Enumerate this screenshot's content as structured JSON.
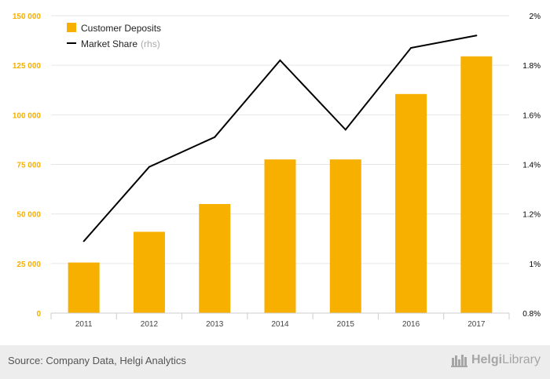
{
  "chart_data": {
    "type": "bar",
    "categories": [
      "2011",
      "2012",
      "2013",
      "2014",
      "2015",
      "2016",
      "2017"
    ],
    "series": [
      {
        "name": "Customer Deposits",
        "type": "bar",
        "axis": "left",
        "color": "#f7b000",
        "values": [
          25500,
          41000,
          55000,
          77500,
          77500,
          110500,
          129500
        ]
      },
      {
        "name": "Market Share",
        "name_suffix": "(rhs)",
        "type": "line",
        "axis": "right",
        "color": "#000000",
        "values": [
          1.09,
          1.39,
          1.51,
          1.82,
          1.54,
          1.87,
          1.92
        ]
      }
    ],
    "y_left": {
      "ylim": [
        0,
        150000
      ],
      "ticks": [
        0,
        25000,
        50000,
        75000,
        100000,
        125000,
        150000
      ],
      "tick_labels": [
        "0",
        "25 000",
        "50 000",
        "75 000",
        "100 000",
        "125 000",
        "150 000"
      ],
      "color": "#f7b000"
    },
    "y_right": {
      "ylim": [
        0.8,
        2.0
      ],
      "ticks": [
        0.8,
        1.0,
        1.2,
        1.4,
        1.6,
        1.8,
        2.0
      ],
      "tick_labels": [
        "0.8%",
        "1%",
        "1.2%",
        "1.4%",
        "1.6%",
        "1.8%",
        "2%"
      ],
      "color": "#000000"
    },
    "grid": true,
    "legend_position": "top-left"
  },
  "footer": {
    "source": "Source: Company Data, Helgi Analytics",
    "brand_bold": "Helgi",
    "brand_rest": "Library"
  },
  "icons": {
    "brand": "helgi-library-logo-icon"
  }
}
